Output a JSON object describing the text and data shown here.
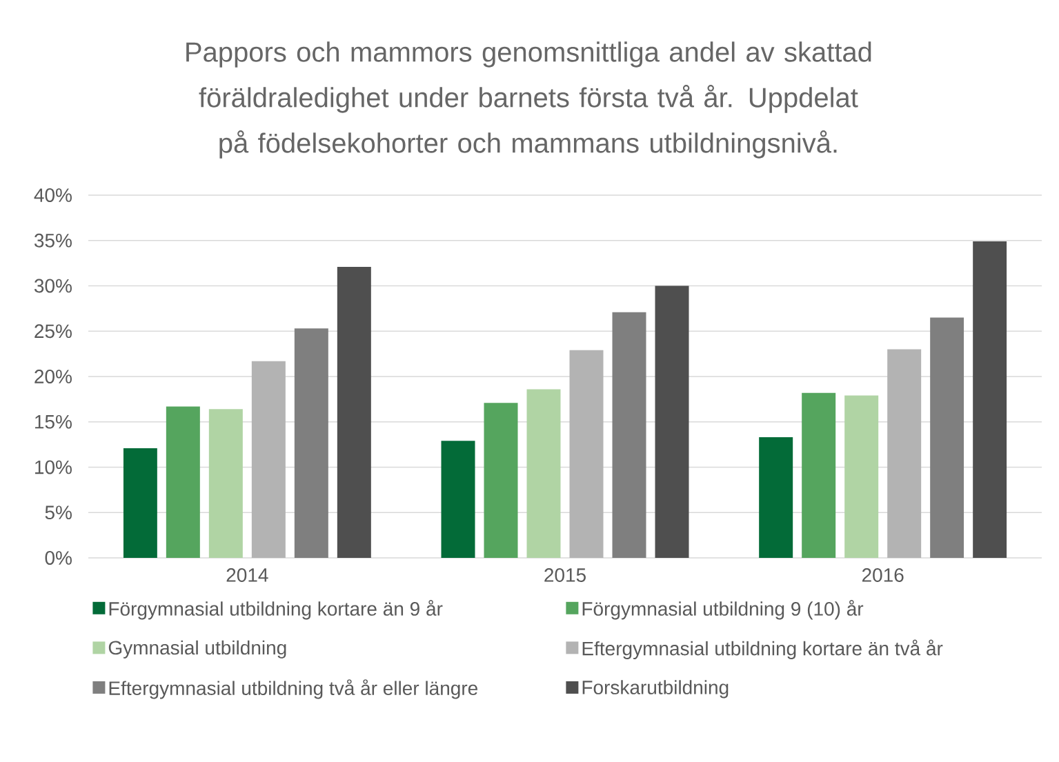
{
  "chart_data": {
    "type": "bar",
    "title": "Pappors och mammors genomsnittliga andel av skattad föräldraledighet under barnets första två år. Uppdelat på födelsekohorter och mammans utbildningsnivå.",
    "categories": [
      "2014",
      "2015",
      "2016"
    ],
    "series": [
      {
        "name": "Förgymnasial utbildning kortare än 9 år",
        "color": "#036b38",
        "values": [
          12.1,
          12.9,
          13.3
        ]
      },
      {
        "name": "Förgymnasial utbildning 9 (10) år",
        "color": "#55a55e",
        "values": [
          16.7,
          17.1,
          18.2
        ]
      },
      {
        "name": "Gymnasial utbildning",
        "color": "#b0d4a4",
        "values": [
          16.4,
          18.6,
          17.9
        ]
      },
      {
        "name": "Eftergymnasial utbildning kortare än två år",
        "color": "#b3b3b3",
        "values": [
          21.7,
          22.9,
          23.0
        ]
      },
      {
        "name": "Eftergymnasial utbildning två år eller längre",
        "color": "#7f7f7f",
        "values": [
          25.3,
          27.1,
          26.5
        ]
      },
      {
        "name": "Forskarutbildning",
        "color": "#4f4f4f",
        "values": [
          32.1,
          30.0,
          34.9
        ]
      }
    ],
    "ylim": [
      0,
      40
    ],
    "yticks": [
      {
        "value": 0,
        "label": "0%"
      },
      {
        "value": 5,
        "label": "5%"
      },
      {
        "value": 10,
        "label": "10%"
      },
      {
        "value": 15,
        "label": "15%"
      },
      {
        "value": 20,
        "label": "20%"
      },
      {
        "value": 25,
        "label": "25%"
      },
      {
        "value": 30,
        "label": "30%"
      },
      {
        "value": 35,
        "label": "35%"
      },
      {
        "value": 40,
        "label": "40%"
      }
    ],
    "grid": "y",
    "legend": "bottom"
  }
}
